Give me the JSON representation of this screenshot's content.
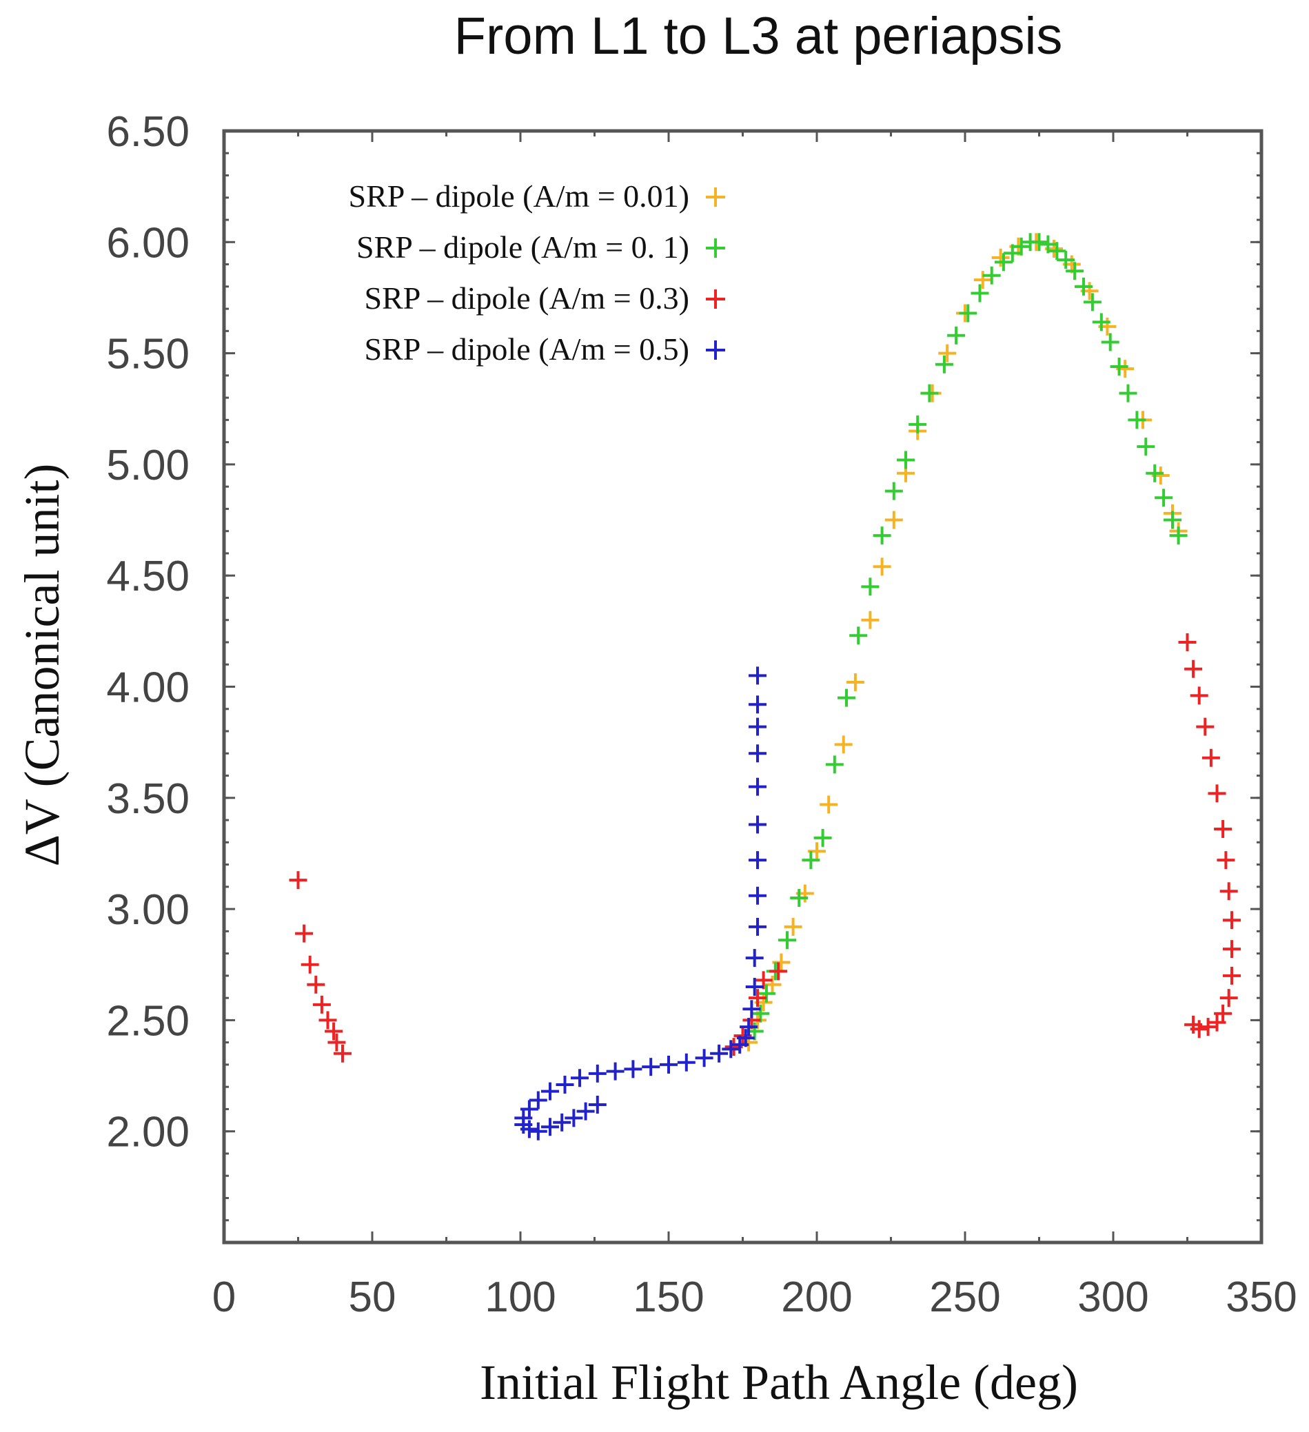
{
  "chart_data": {
    "type": "scatter",
    "title": "From L1 to L3 at periapsis",
    "xlabel": "Initial Flight Path Angle (deg)",
    "ylabel": "ΔV (Canonical unit)",
    "xlim": [
      0,
      350
    ],
    "ylim": [
      1.5,
      6.5
    ],
    "x_ticks": [
      "0",
      "50",
      "100",
      "150",
      "200",
      "250",
      "300",
      "350"
    ],
    "y_ticks": [
      "2.00",
      "2.50",
      "3.00",
      "3.50",
      "4.00",
      "4.50",
      "5.00",
      "5.50",
      "6.00",
      "6.50"
    ],
    "grid": false,
    "legend_position": "top-left",
    "marker": "plus",
    "series": [
      {
        "name": "SRP – dipole (A/m = 0.01)",
        "color": "#f5b324",
        "points": [
          [
            177,
            2.4
          ],
          [
            180,
            2.5
          ],
          [
            182,
            2.58
          ],
          [
            185,
            2.66
          ],
          [
            188,
            2.76
          ],
          [
            192,
            2.92
          ],
          [
            196,
            3.07
          ],
          [
            200,
            3.26
          ],
          [
            204,
            3.47
          ],
          [
            209,
            3.74
          ],
          [
            213,
            4.02
          ],
          [
            218,
            4.3
          ],
          [
            222,
            4.54
          ],
          [
            226,
            4.75
          ],
          [
            230,
            4.96
          ],
          [
            234,
            5.15
          ],
          [
            239,
            5.32
          ],
          [
            244,
            5.5
          ],
          [
            250,
            5.68
          ],
          [
            256,
            5.83
          ],
          [
            262,
            5.93
          ],
          [
            268,
            5.98
          ],
          [
            274,
            6.0
          ],
          [
            280,
            5.97
          ],
          [
            286,
            5.9
          ],
          [
            292,
            5.78
          ],
          [
            298,
            5.62
          ],
          [
            304,
            5.43
          ],
          [
            310,
            5.2
          ],
          [
            316,
            4.95
          ],
          [
            320,
            4.78
          ],
          [
            322,
            4.7
          ]
        ]
      },
      {
        "name": "SRP – dipole (A/m = 0. 1)",
        "color": "#33cc33",
        "points": [
          [
            179,
            2.45
          ],
          [
            181,
            2.53
          ],
          [
            183,
            2.62
          ],
          [
            186,
            2.72
          ],
          [
            190,
            2.86
          ],
          [
            194,
            3.05
          ],
          [
            198,
            3.22
          ],
          [
            202,
            3.32
          ],
          [
            206,
            3.65
          ],
          [
            210,
            3.95
          ],
          [
            214,
            4.23
          ],
          [
            218,
            4.45
          ],
          [
            222,
            4.68
          ],
          [
            226,
            4.88
          ],
          [
            230,
            5.02
          ],
          [
            234,
            5.18
          ],
          [
            238,
            5.32
          ],
          [
            243,
            5.45
          ],
          [
            247,
            5.58
          ],
          [
            251,
            5.68
          ],
          [
            255,
            5.77
          ],
          [
            259,
            5.85
          ],
          [
            263,
            5.91
          ],
          [
            266,
            5.95
          ],
          [
            269,
            5.98
          ],
          [
            272,
            6.0
          ],
          [
            275,
            6.0
          ],
          [
            278,
            5.99
          ],
          [
            281,
            5.96
          ],
          [
            284,
            5.92
          ],
          [
            287,
            5.87
          ],
          [
            290,
            5.8
          ],
          [
            293,
            5.73
          ],
          [
            296,
            5.64
          ],
          [
            299,
            5.55
          ],
          [
            302,
            5.44
          ],
          [
            305,
            5.32
          ],
          [
            308,
            5.2
          ],
          [
            311,
            5.08
          ],
          [
            314,
            4.96
          ],
          [
            317,
            4.85
          ],
          [
            320,
            4.75
          ],
          [
            322,
            4.68
          ]
        ]
      },
      {
        "name": "SRP – dipole (A/m = 0.3)",
        "color": "#ee2222",
        "points": [
          [
            25,
            3.13
          ],
          [
            27,
            2.89
          ],
          [
            29,
            2.75
          ],
          [
            31,
            2.66
          ],
          [
            33,
            2.57
          ],
          [
            35,
            2.5
          ],
          [
            37,
            2.45
          ],
          [
            38,
            2.4
          ],
          [
            40,
            2.35
          ],
          [
            172,
            2.38
          ],
          [
            175,
            2.43
          ],
          [
            178,
            2.5
          ],
          [
            180,
            2.6
          ],
          [
            182,
            2.68
          ],
          [
            187,
            2.72
          ],
          [
            325,
            4.2
          ],
          [
            327,
            4.08
          ],
          [
            329,
            3.96
          ],
          [
            331,
            3.82
          ],
          [
            333,
            3.68
          ],
          [
            335,
            3.52
          ],
          [
            337,
            3.36
          ],
          [
            338,
            3.22
          ],
          [
            339,
            3.08
          ],
          [
            340,
            2.95
          ],
          [
            340,
            2.82
          ],
          [
            340,
            2.7
          ],
          [
            339,
            2.6
          ],
          [
            337,
            2.53
          ],
          [
            335,
            2.49
          ],
          [
            332,
            2.47
          ],
          [
            329,
            2.46
          ],
          [
            327,
            2.48
          ]
        ]
      },
      {
        "name": "SRP – dipole (A/m = 0.5)",
        "color": "#2222cc",
        "points": [
          [
            126,
            2.12
          ],
          [
            122,
            2.09
          ],
          [
            118,
            2.06
          ],
          [
            114,
            2.04
          ],
          [
            110,
            2.02
          ],
          [
            106,
            2.0
          ],
          [
            103,
            2.01
          ],
          [
            101,
            2.03
          ],
          [
            101,
            2.06
          ],
          [
            103,
            2.1
          ],
          [
            106,
            2.14
          ],
          [
            110,
            2.18
          ],
          [
            115,
            2.21
          ],
          [
            120,
            2.24
          ],
          [
            126,
            2.26
          ],
          [
            132,
            2.27
          ],
          [
            138,
            2.28
          ],
          [
            144,
            2.29
          ],
          [
            150,
            2.3
          ],
          [
            156,
            2.31
          ],
          [
            162,
            2.33
          ],
          [
            167,
            2.35
          ],
          [
            171,
            2.37
          ],
          [
            174,
            2.39
          ],
          [
            176,
            2.42
          ],
          [
            177,
            2.47
          ],
          [
            178,
            2.55
          ],
          [
            179,
            2.65
          ],
          [
            179,
            2.78
          ],
          [
            180,
            2.92
          ],
          [
            180,
            3.06
          ],
          [
            180,
            3.22
          ],
          [
            180,
            3.38
          ],
          [
            180,
            3.55
          ],
          [
            180,
            3.7
          ],
          [
            180,
            3.82
          ],
          [
            180,
            3.92
          ],
          [
            180,
            4.05
          ]
        ]
      }
    ]
  }
}
